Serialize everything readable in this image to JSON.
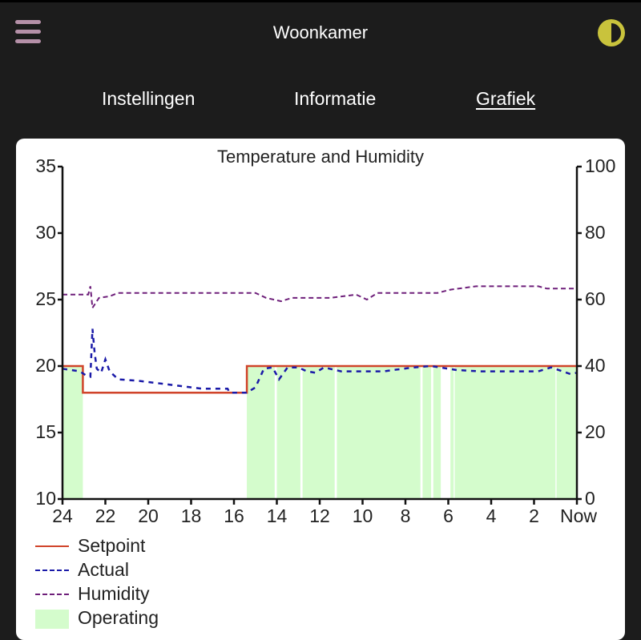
{
  "header": {
    "title": "Woonkamer",
    "menu_icon": "hamburger-menu-icon",
    "theme_icon": "contrast-toggle-icon",
    "menu_color": "#b590a8",
    "theme_color": "#c9c33c"
  },
  "tabs": [
    {
      "label": "Instellingen",
      "active": false
    },
    {
      "label": "Informatie",
      "active": false
    },
    {
      "label": "Grafiek",
      "active": true
    }
  ],
  "chart_data": {
    "type": "line",
    "title": "Temperature and Humidity",
    "xlabel": "",
    "ylabel": "",
    "x_unit": "hours ago",
    "x_ticks": [
      "24",
      "22",
      "20",
      "18",
      "16",
      "14",
      "12",
      "10",
      "8",
      "6",
      "4",
      "2",
      "Now"
    ],
    "x_tick_values": [
      24,
      22,
      20,
      18,
      16,
      14,
      12,
      10,
      8,
      6,
      4,
      2,
      0
    ],
    "ylim": [
      10,
      35
    ],
    "y_ticks": [
      "35",
      "30",
      "25",
      "20",
      "15",
      "10"
    ],
    "y2lim": [
      0,
      100
    ],
    "y2_ticks": [
      "100",
      "80",
      "60",
      "40",
      "20",
      "0"
    ],
    "grid": false,
    "legend_position": "bottom-left",
    "colors": {
      "setpoint": "#d0442a",
      "actual": "#1a1aa8",
      "humidity": "#6e1f7a",
      "operating": "#d4fccc"
    },
    "series": [
      {
        "name": "Setpoint",
        "axis": "left",
        "style": "solid",
        "points": [
          [
            24,
            20
          ],
          [
            23.05,
            20
          ],
          [
            23.05,
            18
          ],
          [
            15.4,
            18
          ],
          [
            15.4,
            20
          ],
          [
            0,
            20
          ]
        ]
      },
      {
        "name": "Actual",
        "axis": "left",
        "style": "dashed",
        "points": [
          [
            24,
            19.8
          ],
          [
            23.2,
            19.6
          ],
          [
            22.9,
            19.3
          ],
          [
            22.7,
            19.2
          ],
          [
            22.6,
            22.8
          ],
          [
            22.5,
            21
          ],
          [
            22.4,
            19.8
          ],
          [
            22.2,
            19.5
          ],
          [
            22.0,
            20.5
          ],
          [
            21.8,
            19.6
          ],
          [
            21.4,
            19.0
          ],
          [
            20.5,
            18.9
          ],
          [
            19.0,
            18.6
          ],
          [
            17.5,
            18.3
          ],
          [
            16.3,
            18.3
          ],
          [
            16.2,
            18.0
          ],
          [
            15.4,
            18.0
          ],
          [
            15.0,
            18.4
          ],
          [
            14.6,
            19.8
          ],
          [
            14.2,
            19.9
          ],
          [
            13.9,
            19.0
          ],
          [
            13.5,
            19.9
          ],
          [
            13.0,
            19.9
          ],
          [
            12.6,
            19.6
          ],
          [
            12.2,
            19.5
          ],
          [
            11.8,
            19.9
          ],
          [
            11.0,
            19.6
          ],
          [
            9.0,
            19.6
          ],
          [
            8.6,
            19.7
          ],
          [
            7.6,
            19.9
          ],
          [
            6.8,
            20.0
          ],
          [
            5.6,
            19.7
          ],
          [
            4.5,
            19.6
          ],
          [
            1.8,
            19.6
          ],
          [
            1.2,
            19.9
          ],
          [
            0.3,
            19.4
          ],
          [
            0,
            19.5
          ]
        ]
      },
      {
        "name": "Humidity",
        "axis": "right",
        "style": "dashed",
        "points": [
          [
            24,
            61.5
          ],
          [
            22.8,
            61.5
          ],
          [
            22.7,
            64.0
          ],
          [
            22.6,
            57.5
          ],
          [
            22.3,
            60.5
          ],
          [
            21.8,
            61.0
          ],
          [
            21.4,
            62.0
          ],
          [
            16.0,
            62.0
          ],
          [
            15.0,
            62.0
          ],
          [
            14.5,
            60.5
          ],
          [
            13.8,
            59.5
          ],
          [
            13.3,
            60.5
          ],
          [
            11.5,
            60.5
          ],
          [
            10.3,
            61.5
          ],
          [
            9.8,
            60.0
          ],
          [
            9.3,
            62.0
          ],
          [
            6.5,
            62.0
          ],
          [
            5.9,
            63.0
          ],
          [
            4.7,
            64.0
          ],
          [
            1.8,
            64.0
          ],
          [
            1.4,
            63.3
          ],
          [
            0,
            63.3
          ]
        ]
      },
      {
        "name": "Operating",
        "type": "area",
        "axis": "left",
        "note": "shaded when heating is operating, up to setpoint",
        "intervals": [
          [
            24,
            23.05
          ],
          [
            15.4,
            14.1
          ],
          [
            14.0,
            12.9
          ],
          [
            12.8,
            11.3
          ],
          [
            11.2,
            7.3
          ],
          [
            7.2,
            6.8
          ],
          [
            6.7,
            6.35
          ],
          [
            5.9,
            5.75
          ],
          [
            5.7,
            1.0
          ],
          [
            0.95,
            0
          ]
        ]
      }
    ]
  },
  "legend": [
    {
      "label": "Setpoint",
      "swatch": "solid-line"
    },
    {
      "label": "Actual",
      "swatch": "dashed-line"
    },
    {
      "label": "Humidity",
      "swatch": "dashed-line"
    },
    {
      "label": "Operating",
      "swatch": "filled-box"
    }
  ]
}
